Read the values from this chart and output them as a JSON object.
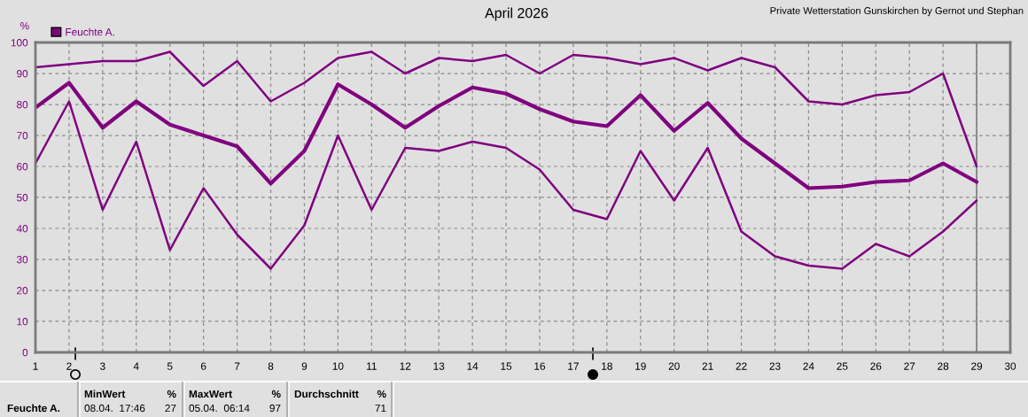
{
  "chart_data": {
    "type": "line",
    "title": "April 2026",
    "subtitle": "Private Wetterstation Gunskirchen by Gernot und Stephan",
    "ylabel": "%",
    "x": [
      1,
      2,
      3,
      4,
      5,
      6,
      7,
      8,
      9,
      10,
      11,
      12,
      13,
      14,
      15,
      16,
      17,
      18,
      19,
      20,
      21,
      22,
      23,
      24,
      25,
      26,
      27,
      28,
      29
    ],
    "series": [
      {
        "color": "#800080",
        "values": [
          92,
          93,
          94,
          94,
          97,
          86,
          94,
          81,
          87,
          95,
          97,
          90,
          95,
          94,
          96,
          90,
          96,
          95,
          93,
          95,
          91,
          95,
          92,
          81,
          80,
          83,
          84,
          90,
          60
        ]
      },
      {
        "name": "Feuchte A.",
        "color": "#800080",
        "values": [
          79,
          87,
          72.5,
          81,
          73.5,
          70,
          66.5,
          54.5,
          65,
          86.5,
          80,
          72.5,
          79.5,
          85.5,
          83.5,
          78.5,
          74.5,
          73,
          83,
          71.5,
          80.5,
          69,
          61,
          53,
          53.5,
          55,
          55.5,
          61,
          55
        ]
      },
      {
        "color": "#800080",
        "values": [
          61,
          81,
          46,
          68,
          33,
          53,
          38,
          27,
          41,
          70,
          46,
          66,
          65,
          68,
          66,
          59,
          46,
          43,
          65,
          49,
          66,
          39,
          31,
          28,
          27,
          35,
          31,
          39,
          49
        ]
      }
    ],
    "xlim": [
      1,
      30
    ],
    "ylim": [
      0,
      100
    ],
    "xticks": [
      1,
      2,
      3,
      4,
      5,
      6,
      7,
      8,
      9,
      10,
      11,
      12,
      13,
      14,
      15,
      16,
      17,
      18,
      19,
      20,
      21,
      22,
      23,
      24,
      25,
      26,
      27,
      28,
      29,
      30
    ],
    "yticks": [
      0,
      10,
      20,
      30,
      40,
      50,
      60,
      70,
      80,
      90,
      100
    ],
    "grid": true,
    "legend": "top left",
    "line_style": "solid",
    "ref_lines": [
      {
        "axis": "x",
        "value": 29,
        "color": "#808080"
      }
    ],
    "annotations": [
      "Feuchte A.",
      "MinWert",
      "%",
      "08.04.  17:46",
      "27",
      "MaxWert",
      "%",
      "05.04.  06:14",
      "97",
      "Durchschnitt",
      "%",
      "71"
    ]
  }
}
